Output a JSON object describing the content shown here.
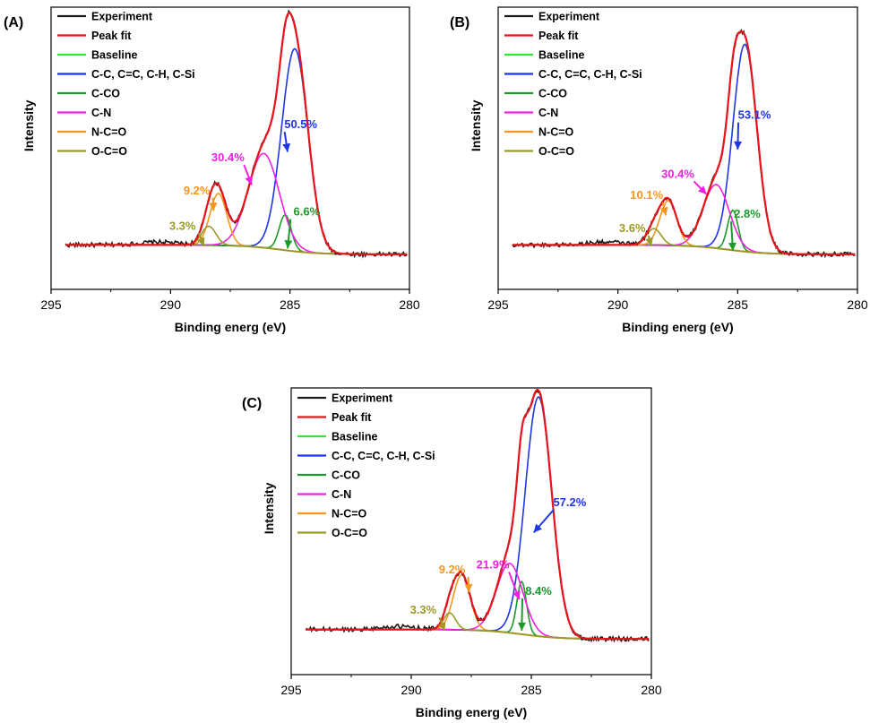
{
  "figure": {
    "colors": {
      "experiment": "#1a1a1a",
      "peak_fit": "#e8141c",
      "baseline": "#8c8c1e",
      "legend_baseline": "#33e533",
      "cc": "#1f35e8",
      "cco": "#1e9a2a",
      "cn": "#f020e0",
      "nco": "#f5961e",
      "oco": "#9a9a28"
    }
  },
  "chart_data": [
    {
      "type": "line",
      "panel_label": "(A)",
      "xlabel": "Binding energ (eV)",
      "ylabel": "Intensity",
      "xlim": [
        295,
        280
      ],
      "x_ticks": [
        "295",
        "290",
        "285",
        "280"
      ],
      "ylim": [
        0,
        1.15
      ],
      "legend": [
        "Experiment",
        "Peak fit",
        "Baseline",
        "C-C, C=C, C-H, C-Si",
        "C-CO",
        "C-N",
        "N-C=O",
        "O-C=O"
      ],
      "series": [
        {
          "name": "C-C, C=C, C-H, C-Si",
          "center": 284.8,
          "height": 0.86,
          "width": 0.55,
          "percent": "50.5%"
        },
        {
          "name": "C-CO",
          "center": 285.2,
          "height": 0.15,
          "width": 0.25,
          "percent": "6.6%"
        },
        {
          "name": "C-N",
          "center": 286.1,
          "height": 0.4,
          "width": 0.65,
          "percent": "30.4%"
        },
        {
          "name": "N-C=O",
          "center": 288.0,
          "height": 0.22,
          "width": 0.35,
          "percent": "9.2%"
        },
        {
          "name": "O-C=O",
          "center": 288.4,
          "height": 0.08,
          "width": 0.3,
          "percent": "3.3%"
        }
      ],
      "baseline": {
        "left": 0.045,
        "right": 0.005,
        "step_center": 285.4,
        "step_width": 0.8
      },
      "annotations": [
        {
          "text": "50.5%",
          "series": "C-C, C=C, C-H, C-Si",
          "at": [
            284.55,
            0.54
          ],
          "tip": [
            285.1,
            0.44
          ]
        },
        {
          "text": "30.4%",
          "series": "C-N",
          "at": [
            287.6,
            0.4
          ],
          "tip": [
            286.6,
            0.3
          ]
        },
        {
          "text": "9.2%",
          "series": "N-C=O",
          "at": [
            288.9,
            0.26
          ],
          "tip": [
            288.2,
            0.19
          ]
        },
        {
          "text": "3.3%",
          "series": "O-C=O",
          "at": [
            289.5,
            0.11
          ],
          "tip": [
            288.6,
            0.04
          ]
        },
        {
          "text": "6.6%",
          "series": "C-CO",
          "at": [
            284.3,
            0.17
          ],
          "tip": [
            285.1,
            0.03
          ]
        }
      ]
    },
    {
      "type": "line",
      "panel_label": "(B)",
      "xlabel": "Binding energ (eV)",
      "ylabel": "Intensity",
      "xlim": [
        295,
        280
      ],
      "x_ticks": [
        "295",
        "290",
        "285",
        "280"
      ],
      "ylim": [
        0,
        1.15
      ],
      "legend": [
        "Experiment",
        "Peak fit",
        "Baseline",
        "C-C, C=C, C-H, C-Si",
        "C-CO",
        "C-N",
        "N-C=O",
        "O-C=O"
      ],
      "series": [
        {
          "name": "C-C, C=C, C-H, C-Si",
          "center": 284.7,
          "height": 0.88,
          "width": 0.5,
          "percent": "53.1%"
        },
        {
          "name": "C-CO",
          "center": 285.2,
          "height": 0.17,
          "width": 0.22,
          "percent": "2.8%"
        },
        {
          "name": "C-N",
          "center": 285.9,
          "height": 0.27,
          "width": 0.55,
          "percent": "30.4%"
        },
        {
          "name": "N-C=O",
          "center": 287.9,
          "height": 0.19,
          "width": 0.35,
          "percent": "10.1%"
        },
        {
          "name": "O-C=O",
          "center": 288.5,
          "height": 0.07,
          "width": 0.3,
          "percent": "3.6%"
        }
      ],
      "baseline": {
        "left": 0.045,
        "right": 0.005,
        "step_center": 285.4,
        "step_width": 0.8
      },
      "annotations": [
        {
          "text": "53.1%",
          "series": "C-C, C=C, C-H, C-Si",
          "at": [
            284.3,
            0.58
          ],
          "tip": [
            285.0,
            0.45
          ]
        },
        {
          "text": "30.4%",
          "series": "C-N",
          "at": [
            287.5,
            0.33
          ],
          "tip": [
            286.3,
            0.26
          ]
        },
        {
          "text": "10.1%",
          "series": "N-C=O",
          "at": [
            288.8,
            0.24
          ],
          "tip": [
            288.0,
            0.17
          ]
        },
        {
          "text": "3.6%",
          "series": "O-C=O",
          "at": [
            289.4,
            0.1
          ],
          "tip": [
            288.6,
            0.04
          ]
        },
        {
          "text": "2.8%",
          "series": "C-CO",
          "at": [
            284.6,
            0.16
          ],
          "tip": [
            285.2,
            0.02
          ]
        }
      ]
    },
    {
      "type": "line",
      "panel_label": "(C)",
      "xlabel": "Binding energ (eV)",
      "ylabel": "Intensity",
      "xlim": [
        295,
        280
      ],
      "x_ticks": [
        "295",
        "290",
        "285",
        "280"
      ],
      "ylim": [
        0,
        1.15
      ],
      "legend": [
        "Experiment",
        "Peak fit",
        "Baseline",
        "C-C, C=C, C-H, C-Si",
        "C-CO",
        "C-N",
        "N-C=O",
        "O-C=O"
      ],
      "series": [
        {
          "name": "C-C, C=C, C-H, C-Si",
          "center": 284.7,
          "height": 1.0,
          "width": 0.55,
          "percent": "57.2%"
        },
        {
          "name": "C-CO",
          "center": 285.4,
          "height": 0.22,
          "width": 0.2,
          "percent": "8.4%"
        },
        {
          "name": "C-N",
          "center": 285.9,
          "height": 0.29,
          "width": 0.55,
          "percent": "21.9%"
        },
        {
          "name": "N-C=O",
          "center": 287.9,
          "height": 0.23,
          "width": 0.35,
          "percent": "9.2%"
        },
        {
          "name": "O-C=O",
          "center": 288.4,
          "height": 0.07,
          "width": 0.25,
          "percent": "3.3%"
        }
      ],
      "baseline": {
        "left": 0.045,
        "right": 0.005,
        "step_center": 285.4,
        "step_width": 0.8
      },
      "annotations": [
        {
          "text": "57.2%",
          "series": "C-C, C=C, C-H, C-Si",
          "at": [
            283.4,
            0.56
          ],
          "tip": [
            284.9,
            0.45
          ]
        },
        {
          "text": "21.9%",
          "series": "C-N",
          "at": [
            286.6,
            0.3
          ],
          "tip": [
            285.5,
            0.17
          ]
        },
        {
          "text": "9.2%",
          "series": "N-C=O",
          "at": [
            288.3,
            0.28
          ],
          "tip": [
            287.6,
            0.2
          ]
        },
        {
          "text": "3.3%",
          "series": "O-C=O",
          "at": [
            289.5,
            0.11
          ],
          "tip": [
            288.6,
            0.04
          ]
        },
        {
          "text": "8.4%",
          "series": "C-CO",
          "at": [
            284.7,
            0.19
          ],
          "tip": [
            285.4,
            0.04
          ]
        }
      ]
    }
  ]
}
